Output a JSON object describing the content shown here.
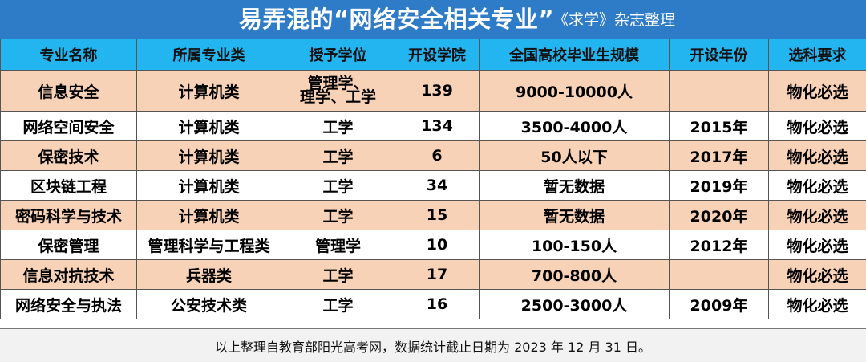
{
  "title": {
    "main": "易弄混的“网络安全相关专业”",
    "source": "《求学》杂志整理"
  },
  "colors": {
    "title_bg": "#2E7BC8",
    "header_bg": "#23B5F0",
    "row_highlight": "#F8D2B6",
    "row_plain": "#FFFFFF"
  },
  "table": {
    "columns": [
      "专业名称",
      "所属专业类",
      "授予学位",
      "开设学院",
      "全国高校毕业生规模",
      "开设年份",
      "选科要求"
    ],
    "rows": [
      {
        "name": "信息安全",
        "category": "计算机类",
        "degree_lines": [
          "管理学、",
          "理学、工学"
        ],
        "colleges": "139",
        "scale": "9000-10000人",
        "year": "",
        "subject": "物化必选"
      },
      {
        "name": "网络空间安全",
        "category": "计算机类",
        "degree": "工学",
        "colleges": "134",
        "scale": "3500-4000人",
        "year": "2015年",
        "subject": "物化必选"
      },
      {
        "name": "保密技术",
        "category": "计算机类",
        "degree": "工学",
        "colleges": "6",
        "scale": "50人以下",
        "year": "2017年",
        "subject": "物化必选"
      },
      {
        "name": "区块链工程",
        "category": "计算机类",
        "degree": "工学",
        "colleges": "34",
        "scale": "暂无数据",
        "year": "2019年",
        "subject": "物化必选"
      },
      {
        "name": "密码科学与技术",
        "category": "计算机类",
        "degree": "工学",
        "colleges": "15",
        "scale": "暂无数据",
        "year": "2020年",
        "subject": "物化必选"
      },
      {
        "name": "保密管理",
        "category": "管理科学与工程类",
        "degree": "管理学",
        "colleges": "10",
        "scale": "100-150人",
        "year": "2012年",
        "subject": "物化必选"
      },
      {
        "name": "信息对抗技术",
        "category": "兵器类",
        "degree": "工学",
        "colleges": "17",
        "scale": "700-800人",
        "year": "",
        "subject": "物化必选"
      },
      {
        "name": "网络安全与执法",
        "category": "公安技术类",
        "degree": "工学",
        "colleges": "16",
        "scale": "2500-3000人",
        "year": "2009年",
        "subject": "物化必选"
      }
    ]
  },
  "footer": "以上整理自教育部阳光高考网，数据统计截止日期为 2023 年 12 月 31 日。"
}
